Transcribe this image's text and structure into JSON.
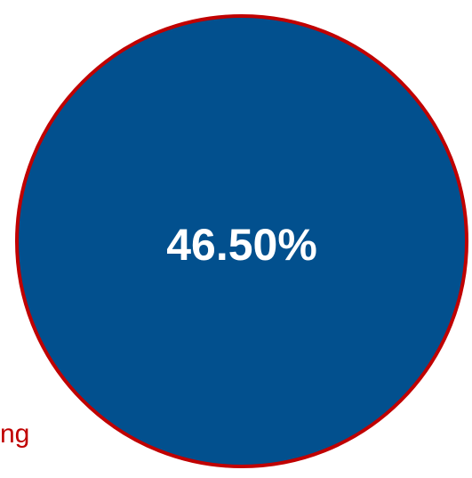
{
  "chart_data": {
    "type": "pie",
    "slices": [
      {
        "label": "46.50%",
        "value": 46.5
      }
    ],
    "fill_color": "#02508e",
    "border_color": "#c00000",
    "legend_fragment": "ng",
    "legend_color": "#c00000"
  }
}
